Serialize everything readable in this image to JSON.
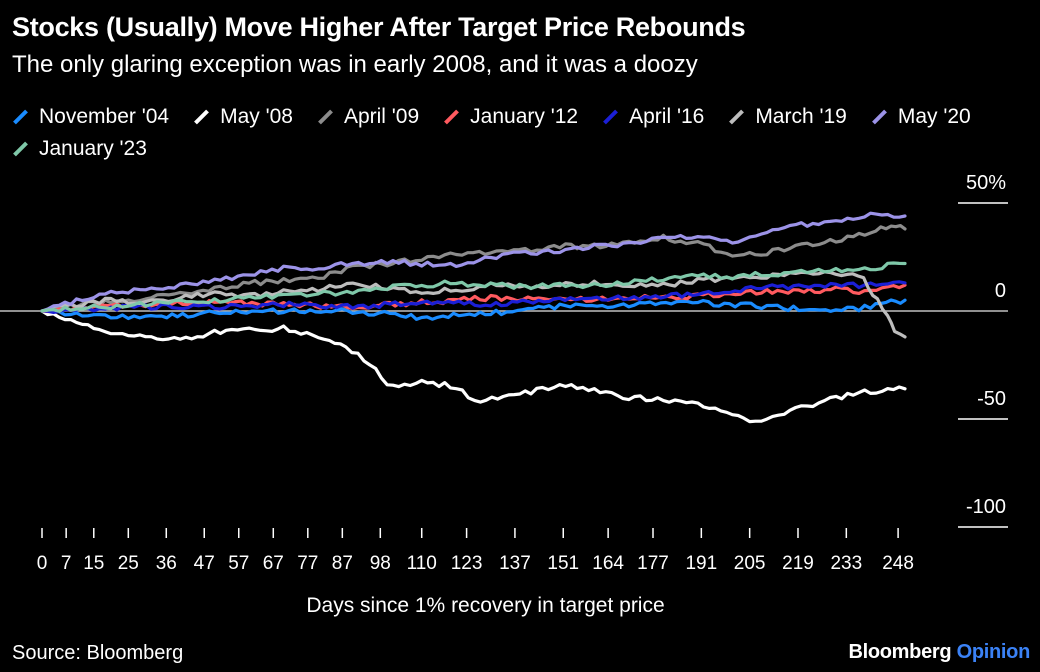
{
  "chart_data": {
    "type": "line",
    "title": "Stocks (Usually) Move Higher After Target Price Rebounds",
    "subtitle": "The only glaring exception was in early 2008, and it was a doozy",
    "xlabel": "Days since 1% recovery in target price",
    "ylabel": "",
    "xlim": [
      0,
      250
    ],
    "ylim": [
      -100,
      50
    ],
    "x_ticks": [
      0,
      7,
      15,
      25,
      36,
      47,
      57,
      67,
      77,
      87,
      98,
      110,
      123,
      137,
      151,
      164,
      177,
      191,
      205,
      219,
      233,
      248
    ],
    "y_ticks": [
      {
        "value": 50,
        "label": "50%"
      },
      {
        "value": 0,
        "label": "0"
      },
      {
        "value": -50,
        "label": "-50"
      },
      {
        "value": -100,
        "label": "-100"
      }
    ],
    "grid": false,
    "legend_position": "top",
    "series": [
      {
        "name": "November '04",
        "color": "#1a8cff",
        "points": [
          [
            0,
            0
          ],
          [
            15,
            -2
          ],
          [
            30,
            -3
          ],
          [
            50,
            -1
          ],
          [
            70,
            0
          ],
          [
            90,
            0
          ],
          [
            110,
            -3
          ],
          [
            130,
            -1
          ],
          [
            150,
            2
          ],
          [
            170,
            3
          ],
          [
            190,
            4
          ],
          [
            210,
            2
          ],
          [
            230,
            0
          ],
          [
            240,
            2
          ],
          [
            246,
            4
          ],
          [
            250,
            5
          ]
        ]
      },
      {
        "name": "May '08",
        "color": "#ffffff",
        "points": [
          [
            0,
            0
          ],
          [
            10,
            -5
          ],
          [
            20,
            -10
          ],
          [
            30,
            -12
          ],
          [
            40,
            -13
          ],
          [
            50,
            -10
          ],
          [
            60,
            -9
          ],
          [
            70,
            -8
          ],
          [
            80,
            -12
          ],
          [
            88,
            -17
          ],
          [
            95,
            -24
          ],
          [
            100,
            -33
          ],
          [
            105,
            -35
          ],
          [
            110,
            -33
          ],
          [
            120,
            -35
          ],
          [
            127,
            -43
          ],
          [
            132,
            -40
          ],
          [
            140,
            -38
          ],
          [
            150,
            -34
          ],
          [
            160,
            -37
          ],
          [
            170,
            -40
          ],
          [
            180,
            -41
          ],
          [
            190,
            -43
          ],
          [
            200,
            -48
          ],
          [
            205,
            -52
          ],
          [
            210,
            -49
          ],
          [
            220,
            -45
          ],
          [
            230,
            -40
          ],
          [
            240,
            -37
          ],
          [
            250,
            -36
          ]
        ]
      },
      {
        "name": "April '09",
        "color": "#8c8c8c",
        "points": [
          [
            0,
            0
          ],
          [
            10,
            3
          ],
          [
            20,
            4
          ],
          [
            30,
            6
          ],
          [
            40,
            8
          ],
          [
            50,
            10
          ],
          [
            60,
            13
          ],
          [
            70,
            14
          ],
          [
            80,
            15
          ],
          [
            90,
            20
          ],
          [
            100,
            22
          ],
          [
            110,
            24
          ],
          [
            120,
            27
          ],
          [
            130,
            27
          ],
          [
            140,
            28
          ],
          [
            150,
            30
          ],
          [
            160,
            30
          ],
          [
            170,
            32
          ],
          [
            180,
            34
          ],
          [
            190,
            31
          ],
          [
            200,
            26
          ],
          [
            210,
            27
          ],
          [
            220,
            30
          ],
          [
            230,
            33
          ],
          [
            240,
            36
          ],
          [
            246,
            40
          ],
          [
            250,
            38
          ]
        ]
      },
      {
        "name": "January '12",
        "color": "#ff5a5f",
        "points": [
          [
            0,
            0
          ],
          [
            15,
            2
          ],
          [
            30,
            3
          ],
          [
            50,
            4
          ],
          [
            70,
            3
          ],
          [
            90,
            2
          ],
          [
            110,
            4
          ],
          [
            130,
            6
          ],
          [
            150,
            5
          ],
          [
            170,
            6
          ],
          [
            190,
            7
          ],
          [
            210,
            9
          ],
          [
            230,
            10
          ],
          [
            240,
            9
          ],
          [
            250,
            12
          ]
        ]
      },
      {
        "name": "April '16",
        "color": "#1b1fd6",
        "points": [
          [
            0,
            0
          ],
          [
            15,
            1
          ],
          [
            30,
            2
          ],
          [
            50,
            2
          ],
          [
            70,
            3
          ],
          [
            90,
            2
          ],
          [
            110,
            4
          ],
          [
            130,
            3
          ],
          [
            150,
            5
          ],
          [
            170,
            6
          ],
          [
            190,
            8
          ],
          [
            210,
            11
          ],
          [
            230,
            12
          ],
          [
            240,
            12
          ],
          [
            250,
            13
          ]
        ]
      },
      {
        "name": "March '19",
        "color": "#bdbdbd",
        "points": [
          [
            0,
            0
          ],
          [
            10,
            3
          ],
          [
            20,
            5
          ],
          [
            30,
            4
          ],
          [
            40,
            6
          ],
          [
            50,
            8
          ],
          [
            60,
            7
          ],
          [
            70,
            9
          ],
          [
            80,
            10
          ],
          [
            90,
            12
          ],
          [
            100,
            11
          ],
          [
            110,
            8
          ],
          [
            120,
            10
          ],
          [
            130,
            12
          ],
          [
            140,
            11
          ],
          [
            150,
            12
          ],
          [
            160,
            13
          ],
          [
            170,
            12
          ],
          [
            180,
            12
          ],
          [
            190,
            14
          ],
          [
            200,
            15
          ],
          [
            210,
            16
          ],
          [
            220,
            17
          ],
          [
            230,
            18
          ],
          [
            238,
            15
          ],
          [
            242,
            5
          ],
          [
            245,
            -2
          ],
          [
            247,
            -10
          ],
          [
            250,
            -12
          ]
        ]
      },
      {
        "name": "May '20",
        "color": "#9c93e8",
        "points": [
          [
            0,
            0
          ],
          [
            10,
            5
          ],
          [
            20,
            8
          ],
          [
            30,
            10
          ],
          [
            40,
            12
          ],
          [
            50,
            14
          ],
          [
            60,
            17
          ],
          [
            70,
            20
          ],
          [
            80,
            20
          ],
          [
            90,
            22
          ],
          [
            100,
            23
          ],
          [
            110,
            22
          ],
          [
            120,
            21
          ],
          [
            130,
            25
          ],
          [
            140,
            27
          ],
          [
            150,
            28
          ],
          [
            160,
            30
          ],
          [
            170,
            31
          ],
          [
            180,
            34
          ],
          [
            190,
            35
          ],
          [
            200,
            32
          ],
          [
            210,
            37
          ],
          [
            220,
            40
          ],
          [
            230,
            42
          ],
          [
            240,
            45
          ],
          [
            250,
            44
          ]
        ]
      },
      {
        "name": "January '23",
        "color": "#7fc8a9",
        "points": [
          [
            0,
            0
          ],
          [
            10,
            1
          ],
          [
            20,
            2
          ],
          [
            30,
            3
          ],
          [
            40,
            4
          ],
          [
            50,
            5
          ],
          [
            60,
            6
          ],
          [
            70,
            7
          ],
          [
            80,
            8
          ],
          [
            90,
            9
          ],
          [
            100,
            11
          ],
          [
            110,
            12
          ],
          [
            120,
            13
          ],
          [
            130,
            12
          ],
          [
            140,
            11
          ],
          [
            150,
            12
          ],
          [
            160,
            12
          ],
          [
            170,
            13
          ],
          [
            180,
            15
          ],
          [
            190,
            16
          ],
          [
            200,
            16
          ],
          [
            210,
            17
          ],
          [
            220,
            18
          ],
          [
            230,
            19
          ],
          [
            240,
            20
          ],
          [
            250,
            22
          ]
        ]
      }
    ]
  },
  "source": "Source: Bloomberg",
  "brand": {
    "name": "Bloomberg",
    "product": "Opinion",
    "product_color": "#3b82f6"
  }
}
